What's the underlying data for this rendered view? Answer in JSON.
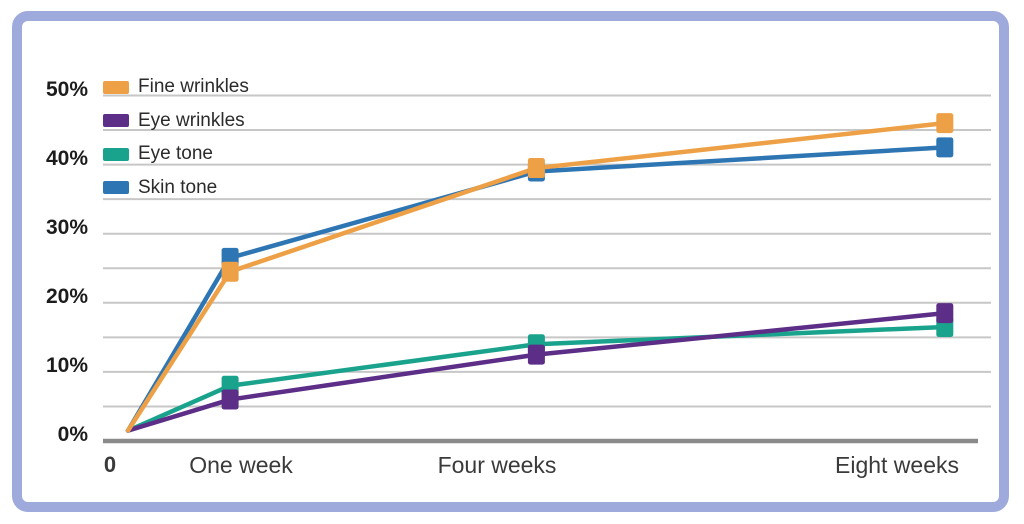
{
  "frame": {
    "border_color": "#9FAADC",
    "background_color": "#ffffff"
  },
  "chart_data": {
    "type": "line",
    "title": "",
    "xlabel": "",
    "ylabel": "",
    "x_weeks": [
      0,
      1,
      4,
      8
    ],
    "x_tick_labels": [
      "0",
      "One week",
      "Four weeks",
      "Eight weeks"
    ],
    "y_tick_labels": [
      "0%",
      "10%",
      "20%",
      "30%",
      "40%",
      "50%"
    ],
    "ylim": [
      0,
      50
    ],
    "grid_step_percent": 5,
    "grid_on": true,
    "legend_position": "top-left",
    "grid_color": "#c7c7c7",
    "axis_color": "#8a8a8a",
    "series": [
      {
        "name": "Fine wrinkles",
        "color": "#EDA045",
        "values": [
          1.5,
          24.5,
          39.5,
          46
        ]
      },
      {
        "name": "Eye wrinkles",
        "color": "#5C2E87",
        "values": [
          1.5,
          6,
          12.5,
          18.5
        ]
      },
      {
        "name": "Eye tone",
        "color": "#1AA38C",
        "values": [
          1.5,
          8,
          14,
          16.5
        ]
      },
      {
        "name": "Skin tone",
        "color": "#2E76B3",
        "values": [
          1.5,
          26.5,
          39,
          42.5
        ]
      }
    ]
  }
}
